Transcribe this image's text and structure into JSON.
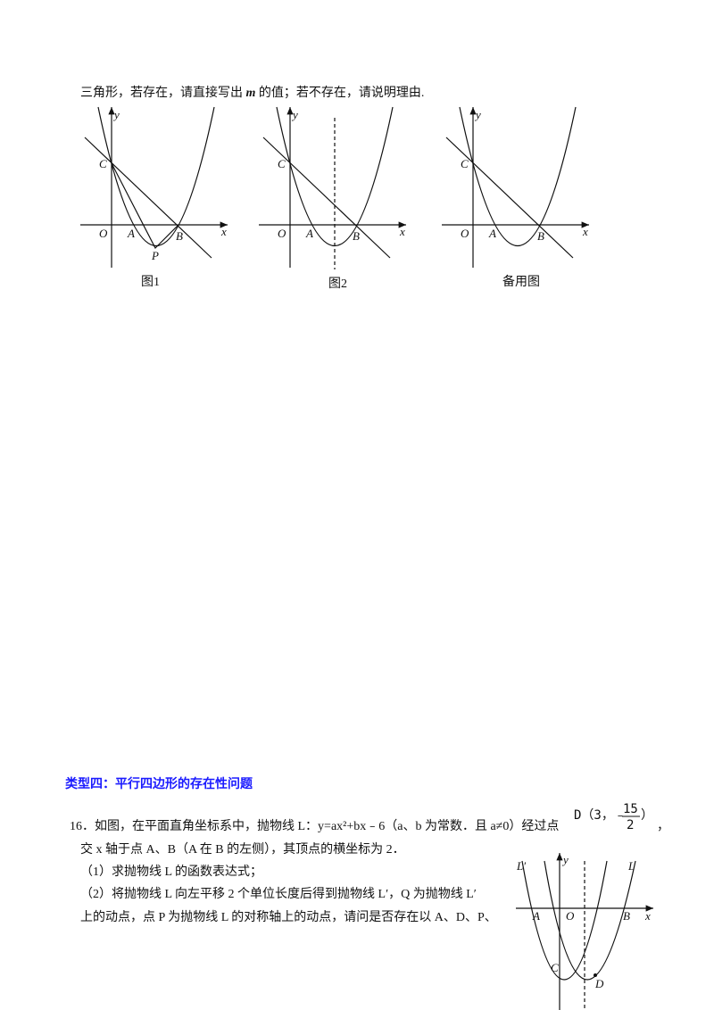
{
  "intro": {
    "before": "三角形，若存在，请直接写出 ",
    "var": "m",
    "after": " 的值；若不存在，请说明理由."
  },
  "figures": [
    {
      "labels": [
        "y",
        "C",
        "O",
        "A",
        "B",
        "x",
        "P"
      ],
      "caption": "图1"
    },
    {
      "labels": [
        "y",
        "C",
        "O",
        "A",
        "B",
        "x"
      ],
      "caption": "图2"
    },
    {
      "labels": [
        "y",
        "C",
        "O",
        "A",
        "B",
        "x"
      ],
      "caption": "备用图"
    }
  ],
  "section_title": "类型四：平行四边形的存在性问题",
  "problem": {
    "line1": "16．如图，在平面直角坐标系中，抛物线 L：y=ax²+bx﹣6（a、b 为常数．且 a≠0）经过点",
    "point": {
      "open": "D（3，",
      "sign": "﹣",
      "num": "15",
      "den": "2",
      "close": "）"
    },
    "comma": "，",
    "line2": "交 x 轴于点 A、B（A 在 B 的左侧），其顶点的横坐标为 2．",
    "line3": "（1）求抛物线 L 的函数表达式；",
    "line4": "（2）将抛物线 L 向左平移 2 个单位长度后得到抛物线 L′，Q 为抛物线 L′",
    "line5": "上的动点，点 P 为抛物线 L 的对称轴上的动点，请问是否存在以 A、D、P、"
  },
  "figure4": {
    "labels": [
      "L′",
      "y",
      "L",
      "A",
      "O",
      "B",
      "x",
      "C",
      "D"
    ]
  }
}
